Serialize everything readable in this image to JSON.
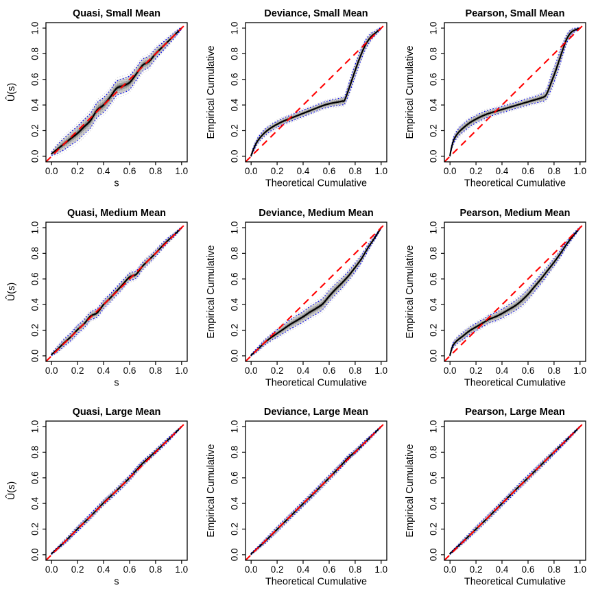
{
  "figure": {
    "background": "#ffffff",
    "description": "3x3 grid of simulation-envelope cumulative diagnostic plots",
    "columns": [
      "Quasi",
      "Deviance",
      "Pearson"
    ],
    "rows": [
      "Small Mean",
      "Medium Mean",
      "Large Mean"
    ]
  },
  "shared": {
    "tick_labels": [
      "0.0",
      "0.2",
      "0.4",
      "0.6",
      "0.8",
      "1.0"
    ],
    "tick_values": [
      0,
      0.2,
      0.4,
      0.6,
      0.8,
      1
    ],
    "colors": {
      "reference_line": "#FF0000",
      "envelope_line": "#0000EE",
      "empirical_curve": "#000000",
      "band_light": "#e7e7e7",
      "band_mid": "#cdcdcd",
      "band_dark": "#a2a2a2",
      "band_core": "#636363",
      "outer_trace": "#d4d4d4"
    },
    "curve_format": "[x, y, envelope_halfwidth]",
    "reference_line": "y = x (red dashed)",
    "envelope": "simulated envelope: gray traces with blue dashed bounds"
  },
  "chart_data": [
    {
      "type": "line",
      "id": "quasi-small",
      "title": "Quasi, Small Mean",
      "xlabel": "s",
      "ylabel": "Û(s)",
      "xlim": [
        0,
        1
      ],
      "ylim": [
        0,
        1
      ],
      "grid": false,
      "legend": "none",
      "curve": [
        [
          0,
          0.02,
          0.012
        ],
        [
          0.05,
          0.06,
          0.032
        ],
        [
          0.1,
          0.1,
          0.042
        ],
        [
          0.15,
          0.14,
          0.046
        ],
        [
          0.2,
          0.18,
          0.05
        ],
        [
          0.25,
          0.23,
          0.052
        ],
        [
          0.3,
          0.28,
          0.052
        ],
        [
          0.35,
          0.36,
          0.052
        ],
        [
          0.4,
          0.4,
          0.052
        ],
        [
          0.45,
          0.46,
          0.05
        ],
        [
          0.5,
          0.53,
          0.05
        ],
        [
          0.55,
          0.55,
          0.05
        ],
        [
          0.6,
          0.575,
          0.048
        ],
        [
          0.65,
          0.64,
          0.045
        ],
        [
          0.7,
          0.71,
          0.042
        ],
        [
          0.75,
          0.74,
          0.04
        ],
        [
          0.8,
          0.8,
          0.036
        ],
        [
          0.85,
          0.85,
          0.03
        ],
        [
          0.9,
          0.9,
          0.025
        ],
        [
          0.95,
          0.95,
          0.018
        ],
        [
          1,
          1,
          0.008
        ]
      ]
    },
    {
      "type": "line",
      "id": "deviance-small",
      "title": "Deviance, Small Mean",
      "xlabel": "Theoretical Cumulative",
      "ylabel": "Empirical Cumulative",
      "xlim": [
        0,
        1
      ],
      "ylim": [
        0,
        1
      ],
      "grid": false,
      "legend": "none",
      "curve": [
        [
          0,
          0.005,
          0.006
        ],
        [
          0.02,
          0.06,
          0.016
        ],
        [
          0.05,
          0.12,
          0.02
        ],
        [
          0.1,
          0.18,
          0.022
        ],
        [
          0.15,
          0.22,
          0.022
        ],
        [
          0.2,
          0.25,
          0.022
        ],
        [
          0.25,
          0.275,
          0.022
        ],
        [
          0.3,
          0.295,
          0.022
        ],
        [
          0.35,
          0.315,
          0.022
        ],
        [
          0.4,
          0.335,
          0.022
        ],
        [
          0.45,
          0.355,
          0.022
        ],
        [
          0.5,
          0.375,
          0.022
        ],
        [
          0.55,
          0.395,
          0.022
        ],
        [
          0.6,
          0.41,
          0.023
        ],
        [
          0.65,
          0.42,
          0.024
        ],
        [
          0.7,
          0.43,
          0.026
        ],
        [
          0.72,
          0.44,
          0.028
        ],
        [
          0.76,
          0.55,
          0.04
        ],
        [
          0.8,
          0.67,
          0.042
        ],
        [
          0.84,
          0.78,
          0.038
        ],
        [
          0.88,
          0.87,
          0.032
        ],
        [
          0.92,
          0.93,
          0.024
        ],
        [
          0.96,
          0.965,
          0.015
        ],
        [
          1,
          1,
          0.006
        ]
      ]
    },
    {
      "type": "line",
      "id": "pearson-small",
      "title": "Pearson, Small Mean",
      "xlabel": "Theoretical Cumulative",
      "ylabel": "Empirical Cumulative",
      "xlim": [
        0,
        1
      ],
      "ylim": [
        0,
        1
      ],
      "grid": false,
      "legend": "none",
      "curve": [
        [
          0,
          0.005,
          0.006
        ],
        [
          0.01,
          0.06,
          0.014
        ],
        [
          0.03,
          0.13,
          0.022
        ],
        [
          0.06,
          0.18,
          0.026
        ],
        [
          0.1,
          0.22,
          0.028
        ],
        [
          0.15,
          0.26,
          0.028
        ],
        [
          0.2,
          0.29,
          0.026
        ],
        [
          0.25,
          0.315,
          0.026
        ],
        [
          0.3,
          0.335,
          0.024
        ],
        [
          0.35,
          0.35,
          0.023
        ],
        [
          0.4,
          0.365,
          0.022
        ],
        [
          0.45,
          0.38,
          0.022
        ],
        [
          0.5,
          0.395,
          0.022
        ],
        [
          0.55,
          0.41,
          0.022
        ],
        [
          0.6,
          0.425,
          0.023
        ],
        [
          0.65,
          0.44,
          0.024
        ],
        [
          0.7,
          0.455,
          0.027
        ],
        [
          0.74,
          0.48,
          0.032
        ],
        [
          0.78,
          0.58,
          0.048
        ],
        [
          0.81,
          0.66,
          0.05
        ],
        [
          0.84,
          0.75,
          0.046
        ],
        [
          0.87,
          0.84,
          0.038
        ],
        [
          0.9,
          0.92,
          0.028
        ],
        [
          0.93,
          0.965,
          0.02
        ],
        [
          0.96,
          0.985,
          0.012
        ],
        [
          1,
          1,
          0.006
        ]
      ]
    },
    {
      "type": "line",
      "id": "quasi-medium",
      "title": "Quasi, Medium Mean",
      "xlabel": "s",
      "ylabel": "Û(s)",
      "xlim": [
        0,
        1
      ],
      "ylim": [
        0,
        1
      ],
      "grid": false,
      "legend": "none",
      "curve": [
        [
          0,
          0.01,
          0.008
        ],
        [
          0.05,
          0.055,
          0.02
        ],
        [
          0.1,
          0.105,
          0.025
        ],
        [
          0.15,
          0.15,
          0.027
        ],
        [
          0.2,
          0.205,
          0.028
        ],
        [
          0.25,
          0.25,
          0.029
        ],
        [
          0.3,
          0.31,
          0.029
        ],
        [
          0.35,
          0.335,
          0.029
        ],
        [
          0.4,
          0.4,
          0.029
        ],
        [
          0.45,
          0.45,
          0.028
        ],
        [
          0.5,
          0.505,
          0.028
        ],
        [
          0.55,
          0.56,
          0.028
        ],
        [
          0.6,
          0.615,
          0.028
        ],
        [
          0.65,
          0.635,
          0.027
        ],
        [
          0.7,
          0.7,
          0.026
        ],
        [
          0.75,
          0.75,
          0.024
        ],
        [
          0.8,
          0.8,
          0.022
        ],
        [
          0.85,
          0.855,
          0.02
        ],
        [
          0.9,
          0.905,
          0.017
        ],
        [
          0.95,
          0.95,
          0.013
        ],
        [
          1,
          1,
          0.006
        ]
      ]
    },
    {
      "type": "line",
      "id": "deviance-medium",
      "title": "Deviance, Medium Mean",
      "xlabel": "Theoretical Cumulative",
      "ylabel": "Empirical Cumulative",
      "xlim": [
        0,
        1
      ],
      "ylim": [
        0,
        1
      ],
      "grid": false,
      "legend": "none",
      "curve": [
        [
          0,
          0.005,
          0.006
        ],
        [
          0.05,
          0.05,
          0.014
        ],
        [
          0.1,
          0.1,
          0.018
        ],
        [
          0.15,
          0.14,
          0.021
        ],
        [
          0.2,
          0.175,
          0.026
        ],
        [
          0.25,
          0.21,
          0.03
        ],
        [
          0.3,
          0.245,
          0.033
        ],
        [
          0.35,
          0.275,
          0.035
        ],
        [
          0.4,
          0.305,
          0.037
        ],
        [
          0.45,
          0.34,
          0.039
        ],
        [
          0.5,
          0.37,
          0.04
        ],
        [
          0.55,
          0.405,
          0.04
        ],
        [
          0.6,
          0.465,
          0.04
        ],
        [
          0.65,
          0.52,
          0.038
        ],
        [
          0.7,
          0.57,
          0.036
        ],
        [
          0.75,
          0.625,
          0.033
        ],
        [
          0.8,
          0.69,
          0.03
        ],
        [
          0.85,
          0.76,
          0.026
        ],
        [
          0.9,
          0.845,
          0.021
        ],
        [
          0.95,
          0.92,
          0.014
        ],
        [
          1,
          1,
          0.006
        ]
      ]
    },
    {
      "type": "line",
      "id": "pearson-medium",
      "title": "Pearson, Medium Mean",
      "xlabel": "Theoretical Cumulative",
      "ylabel": "Empirical Cumulative",
      "xlim": [
        0,
        1
      ],
      "ylim": [
        0,
        1
      ],
      "grid": false,
      "legend": "none",
      "curve": [
        [
          0,
          0.005,
          0.006
        ],
        [
          0.02,
          0.075,
          0.016
        ],
        [
          0.05,
          0.115,
          0.021
        ],
        [
          0.1,
          0.155,
          0.025
        ],
        [
          0.15,
          0.195,
          0.026
        ],
        [
          0.2,
          0.225,
          0.026
        ],
        [
          0.25,
          0.255,
          0.026
        ],
        [
          0.3,
          0.285,
          0.027
        ],
        [
          0.35,
          0.305,
          0.029
        ],
        [
          0.4,
          0.33,
          0.031
        ],
        [
          0.45,
          0.36,
          0.033
        ],
        [
          0.5,
          0.39,
          0.035
        ],
        [
          0.55,
          0.43,
          0.036
        ],
        [
          0.6,
          0.48,
          0.036
        ],
        [
          0.65,
          0.54,
          0.034
        ],
        [
          0.7,
          0.6,
          0.032
        ],
        [
          0.75,
          0.665,
          0.029
        ],
        [
          0.8,
          0.73,
          0.027
        ],
        [
          0.85,
          0.8,
          0.023
        ],
        [
          0.9,
          0.875,
          0.019
        ],
        [
          0.95,
          0.94,
          0.013
        ],
        [
          1,
          1,
          0.006
        ]
      ]
    },
    {
      "type": "line",
      "id": "quasi-large",
      "title": "Quasi, Large Mean",
      "xlabel": "s",
      "ylabel": "Û(s)",
      "xlim": [
        0,
        1
      ],
      "ylim": [
        0,
        1
      ],
      "grid": false,
      "legend": "none",
      "curve": [
        [
          0,
          0.008,
          0.006
        ],
        [
          0.1,
          0.1,
          0.014
        ],
        [
          0.2,
          0.202,
          0.017
        ],
        [
          0.3,
          0.3,
          0.018
        ],
        [
          0.4,
          0.405,
          0.018
        ],
        [
          0.5,
          0.5,
          0.018
        ],
        [
          0.6,
          0.6,
          0.018
        ],
        [
          0.65,
          0.657,
          0.018
        ],
        [
          0.7,
          0.712,
          0.017
        ],
        [
          0.8,
          0.805,
          0.015
        ],
        [
          0.9,
          0.9,
          0.012
        ],
        [
          1,
          1,
          0.005
        ]
      ]
    },
    {
      "type": "line",
      "id": "deviance-large",
      "title": "Deviance, Large Mean",
      "xlabel": "Theoretical Cumulative",
      "ylabel": "Empirical Cumulative",
      "xlim": [
        0,
        1
      ],
      "ylim": [
        0,
        1
      ],
      "grid": false,
      "legend": "none",
      "curve": [
        [
          0,
          0.006,
          0.006
        ],
        [
          0.1,
          0.098,
          0.014
        ],
        [
          0.2,
          0.198,
          0.017
        ],
        [
          0.3,
          0.298,
          0.018
        ],
        [
          0.4,
          0.398,
          0.018
        ],
        [
          0.5,
          0.497,
          0.018
        ],
        [
          0.6,
          0.6,
          0.018
        ],
        [
          0.7,
          0.705,
          0.018
        ],
        [
          0.75,
          0.76,
          0.017
        ],
        [
          0.8,
          0.803,
          0.015
        ],
        [
          0.9,
          0.9,
          0.012
        ],
        [
          1,
          1,
          0.005
        ]
      ]
    },
    {
      "type": "line",
      "id": "pearson-large",
      "title": "Pearson, Large Mean",
      "xlabel": "Theoretical Cumulative",
      "ylabel": "Empirical Cumulative",
      "xlim": [
        0,
        1
      ],
      "ylim": [
        0,
        1
      ],
      "grid": false,
      "legend": "none",
      "curve": [
        [
          0,
          0.008,
          0.006
        ],
        [
          0.1,
          0.102,
          0.014
        ],
        [
          0.2,
          0.2,
          0.017
        ],
        [
          0.3,
          0.298,
          0.018
        ],
        [
          0.4,
          0.4,
          0.018
        ],
        [
          0.5,
          0.502,
          0.018
        ],
        [
          0.6,
          0.6,
          0.018
        ],
        [
          0.7,
          0.7,
          0.018
        ],
        [
          0.8,
          0.8,
          0.015
        ],
        [
          0.9,
          0.898,
          0.012
        ],
        [
          1,
          1,
          0.005
        ]
      ]
    }
  ]
}
